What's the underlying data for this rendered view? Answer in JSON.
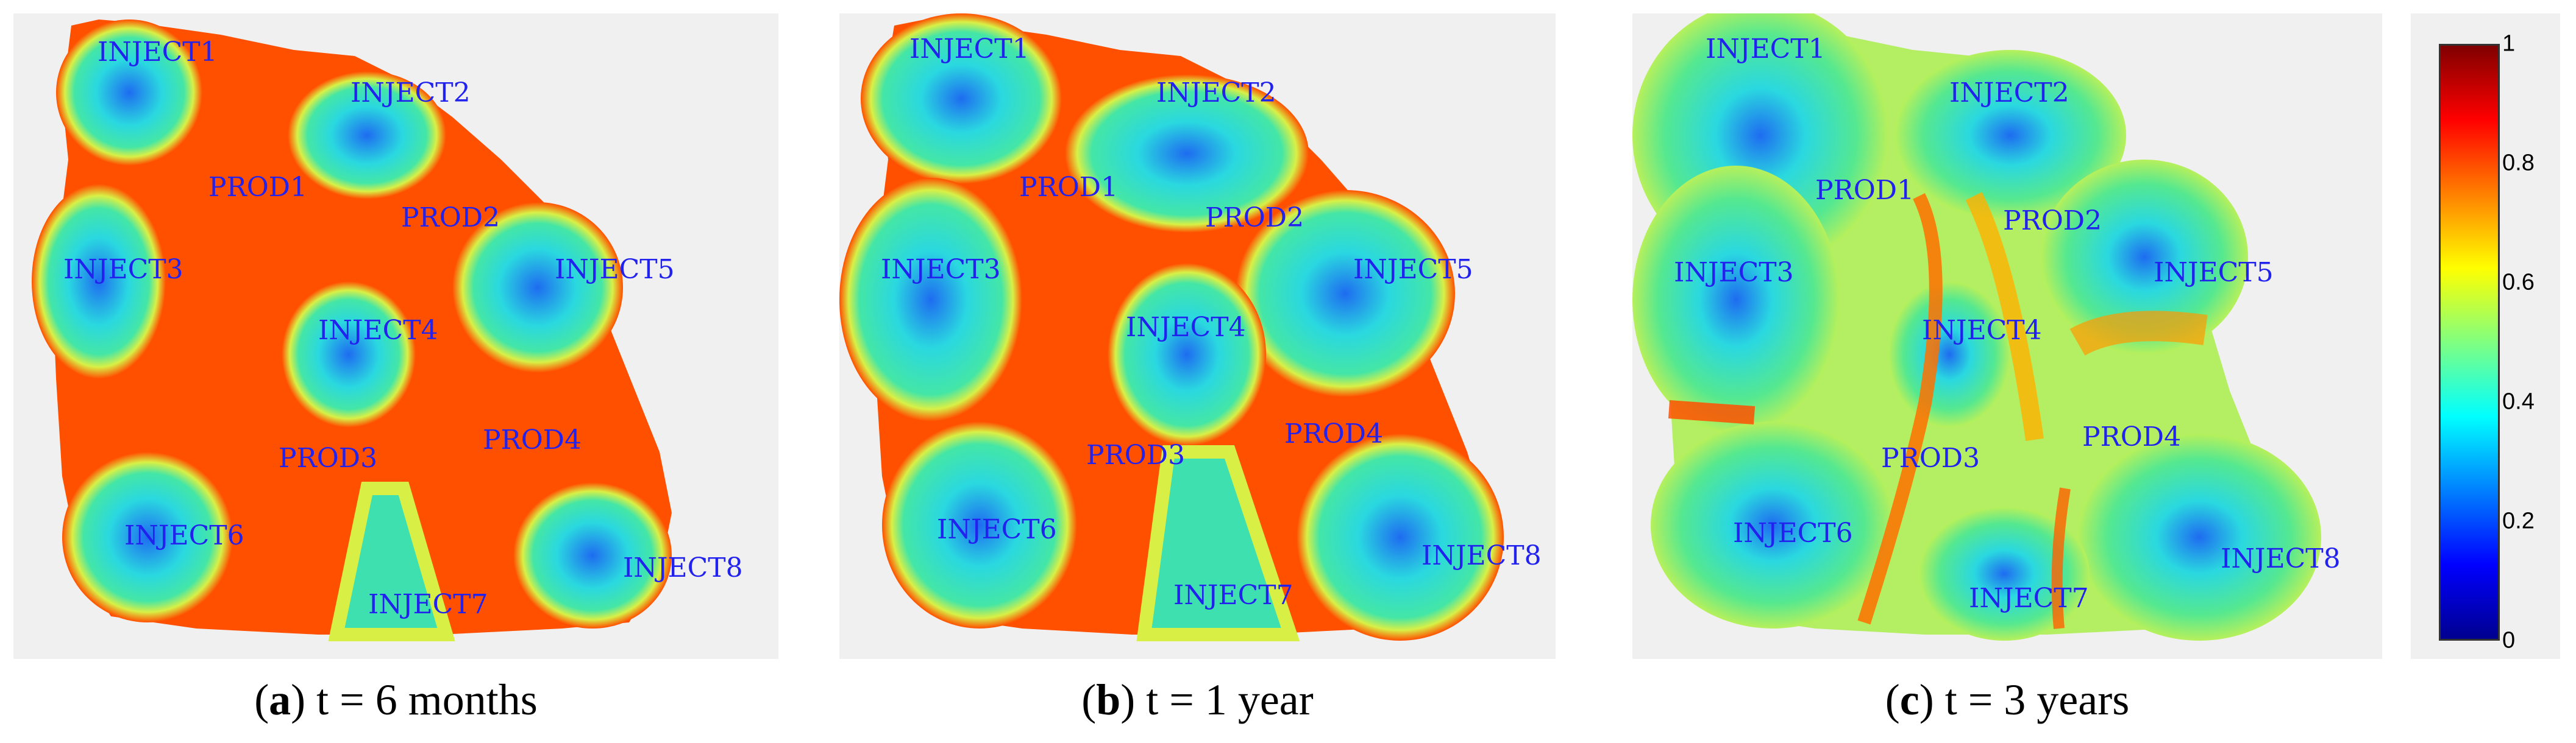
{
  "figure": {
    "panels": [
      {
        "id": "a",
        "letter": "a",
        "caption_text": ") t = 6 months",
        "wells": [
          "INJECT1",
          "INJECT2",
          "PROD1",
          "PROD2",
          "INJECT3",
          "INJECT5",
          "INJECT4",
          "PROD3",
          "PROD4",
          "INJECT6",
          "INJECT8",
          "INJECT7"
        ]
      },
      {
        "id": "b",
        "letter": "b",
        "caption_text": ") t = 1 year",
        "wells": [
          "INJECT1",
          "INJECT2",
          "PROD1",
          "PROD2",
          "INJECT3",
          "INJECT5",
          "INJECT4",
          "PROD3",
          "PROD4",
          "INJECT6",
          "INJECT8",
          "INJECT7"
        ]
      },
      {
        "id": "c",
        "letter": "c",
        "caption_text": ") t = 3 years",
        "wells": [
          "INJECT1",
          "INJECT2",
          "PROD1",
          "PROD2",
          "INJECT3",
          "INJECT5",
          "INJECT4",
          "PROD3",
          "PROD4",
          "INJECT6",
          "INJECT8",
          "INJECT7"
        ]
      }
    ],
    "colorbar": {
      "ticks": [
        "1",
        "0.8",
        "0.6",
        "0.4",
        "0.2",
        "0"
      ],
      "colormap": [
        "#00008f",
        "#0000ff",
        "#0080ff",
        "#00ffff",
        "#80ff80",
        "#ffff00",
        "#ff8000",
        "#ff0000",
        "#800000"
      ]
    },
    "colors": {
      "label_blue": "#2222ee",
      "high_saturation": "#ff5000",
      "low_saturation": "#33ddbb",
      "background": "#f0f0f0"
    }
  }
}
